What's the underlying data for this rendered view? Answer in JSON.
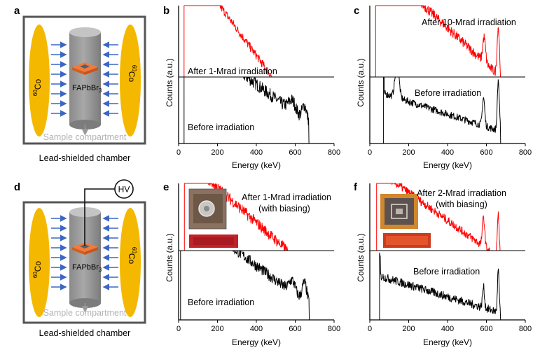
{
  "panels": {
    "a": {
      "letter": "a",
      "source_left": "60Co",
      "source_right": "60Co",
      "sample": "FAPbBr3",
      "compartment": "Sample compartment",
      "chamber": "Lead-shielded chamber"
    },
    "d": {
      "letter": "d",
      "source_left": "60Co",
      "source_right": "60Co",
      "sample": "FAPbBr3",
      "compartment": "Sample compartment",
      "chamber": "Lead-shielded chamber",
      "hv": "HV"
    }
  },
  "text": {
    "co_mass": "60",
    "co_sym": "Co",
    "fapbbr_main": "FAPbBr",
    "fapbbr_sub": "3"
  },
  "chart_data": [
    {
      "type": "line",
      "panel": "b",
      "letter": "b",
      "xlabel": "Energy (keV)",
      "ylabel": "Counts (a.u.)",
      "xlim": [
        0,
        800
      ],
      "xticks": [
        0,
        200,
        400,
        600,
        800
      ],
      "series": [
        {
          "name": "After 1-Mrad irradiation",
          "color": "#ff0000"
        },
        {
          "name": "Before irradiation",
          "color": "#000000"
        }
      ],
      "annotations": [
        "After 1-Mrad irradiation",
        "Before irradiation"
      ]
    },
    {
      "type": "line",
      "panel": "c",
      "letter": "c",
      "xlabel": "Energy (keV)",
      "ylabel": "Counts (a.u.)",
      "xlim": [
        0,
        800
      ],
      "xticks": [
        0,
        200,
        400,
        600,
        800
      ],
      "series": [
        {
          "name": "After 10-Mrad irradiation",
          "color": "#ff0000"
        },
        {
          "name": "Before irradiation",
          "color": "#000000"
        }
      ],
      "peaks_keV": [
        585,
        661
      ],
      "annotations": [
        "After 10-Mrad irradiation",
        "Before irradiation"
      ]
    },
    {
      "type": "line",
      "panel": "e",
      "letter": "e",
      "xlabel": "Energy (keV)",
      "ylabel": "Counts (a.u.)",
      "xlim": [
        0,
        800
      ],
      "xticks": [
        0,
        200,
        400,
        600,
        800
      ],
      "series": [
        {
          "name": "After 1-Mrad irradiation (with biasing)",
          "color": "#ff0000"
        },
        {
          "name": "Before irradiation",
          "color": "#000000"
        }
      ],
      "annotations": [
        "After 1-Mrad irradiation",
        "(with biasing)",
        "Before irradiation"
      ]
    },
    {
      "type": "line",
      "panel": "f",
      "letter": "f",
      "xlabel": "Energy (keV)",
      "ylabel": "Counts (a.u.)",
      "xlim": [
        0,
        800
      ],
      "xticks": [
        0,
        200,
        400,
        600,
        800
      ],
      "series": [
        {
          "name": "After 2-Mrad irradiation (with biasing)",
          "color": "#ff0000"
        },
        {
          "name": "Before irradiation",
          "color": "#000000"
        }
      ],
      "peaks_keV": [
        585,
        661
      ],
      "annotations": [
        "After 2-Mrad irradiation",
        "(with biasing)",
        "Before irradiation"
      ]
    }
  ]
}
